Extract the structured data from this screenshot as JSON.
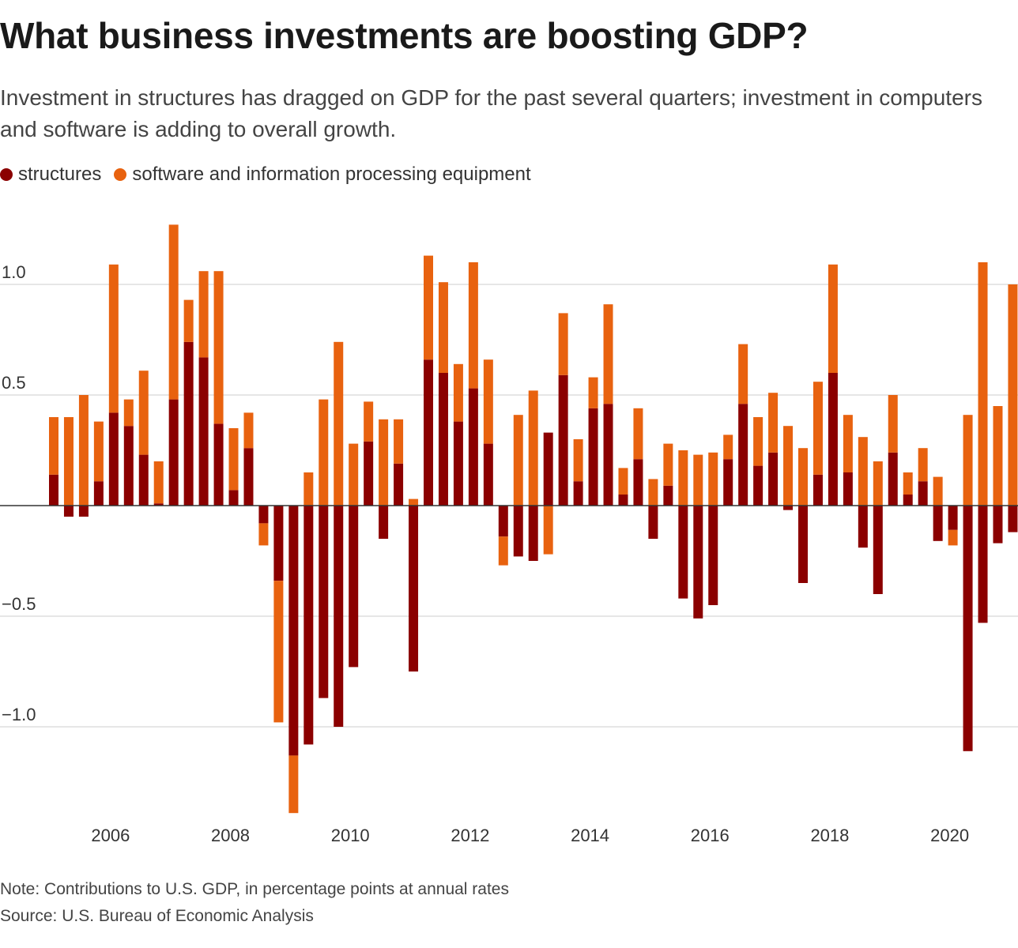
{
  "title": "What business investments are boosting GDP?",
  "subtitle": "Investment in structures has dragged on GDP for the past several quarters; investment in computers and software is adding to overall growth.",
  "legend": {
    "structures": "structures",
    "software": "software and information processing equipment"
  },
  "colors": {
    "structures": "#8b0000",
    "software": "#e8620f",
    "gridline": "#cccccc",
    "zeroline": "#333333"
  },
  "note": "Note: Contributions to U.S. GDP, in percentage points at annual rates",
  "source": "Source: U.S. Bureau of Economic Analysis",
  "chart_data": {
    "type": "bar",
    "stacking": "diverging-stacked",
    "title": "What business investments are boosting GDP?",
    "xlabel": "",
    "ylabel": "",
    "ylim": [
      -1.4,
      1.3
    ],
    "yticks": [
      1.0,
      0.5,
      -0.5,
      -1.0
    ],
    "ytick_labels": [
      "1.0",
      "0.5",
      "−0.5",
      "−1.0"
    ],
    "grid": true,
    "legend_position": "top-left",
    "start_period": "2005 Q1",
    "frequency": "quarterly",
    "xtick_labels": [
      {
        "label": "2006",
        "quarter_index": 4
      },
      {
        "label": "2008",
        "quarter_index": 12
      },
      {
        "label": "2010",
        "quarter_index": 20
      },
      {
        "label": "2012",
        "quarter_index": 28
      },
      {
        "label": "2014",
        "quarter_index": 36
      },
      {
        "label": "2016",
        "quarter_index": 44
      },
      {
        "label": "2018",
        "quarter_index": 52
      },
      {
        "label": "2020",
        "quarter_index": 60
      }
    ],
    "series": [
      {
        "name": "structures",
        "values": [
          0.14,
          -0.05,
          -0.05,
          0.11,
          0.42,
          0.36,
          0.23,
          0.01,
          0.48,
          0.74,
          0.67,
          0.37,
          0.07,
          0.26,
          -0.08,
          -0.34,
          -1.13,
          -1.08,
          -0.87,
          -1.0,
          -0.73,
          0.29,
          -0.15,
          0.19,
          -0.75,
          0.66,
          0.6,
          0.38,
          0.53,
          0.28,
          -0.14,
          -0.23,
          -0.25,
          0.33,
          0.59,
          0.11,
          0.44,
          0.46,
          0.05,
          0.21,
          -0.15,
          0.09,
          -0.42,
          -0.51,
          -0.45,
          0.21,
          0.46,
          0.18,
          0.24,
          -0.02,
          -0.35,
          0.14,
          0.6,
          0.15,
          -0.19,
          -0.4,
          0.24,
          0.05,
          0.11,
          -0.16,
          -0.11,
          -1.11,
          -0.53,
          -0.17,
          -0.12
        ]
      },
      {
        "name": "software and information processing equipment",
        "values": [
          0.26,
          0.4,
          0.5,
          0.27,
          0.67,
          0.12,
          0.38,
          0.19,
          0.79,
          0.19,
          0.39,
          0.69,
          0.28,
          0.16,
          -0.1,
          -0.64,
          -0.26,
          0.15,
          0.48,
          0.74,
          0.28,
          0.18,
          0.39,
          0.2,
          0.03,
          0.47,
          0.41,
          0.26,
          0.57,
          0.38,
          -0.13,
          0.41,
          0.52,
          -0.22,
          0.28,
          0.19,
          0.14,
          0.45,
          0.12,
          0.23,
          0.12,
          0.19,
          0.25,
          0.23,
          0.24,
          0.11,
          0.27,
          0.22,
          0.27,
          0.36,
          0.26,
          0.42,
          0.49,
          0.26,
          0.31,
          0.2,
          0.26,
          0.1,
          0.15,
          0.13,
          -0.07,
          0.41,
          1.1,
          0.45,
          1.0
        ]
      }
    ]
  }
}
